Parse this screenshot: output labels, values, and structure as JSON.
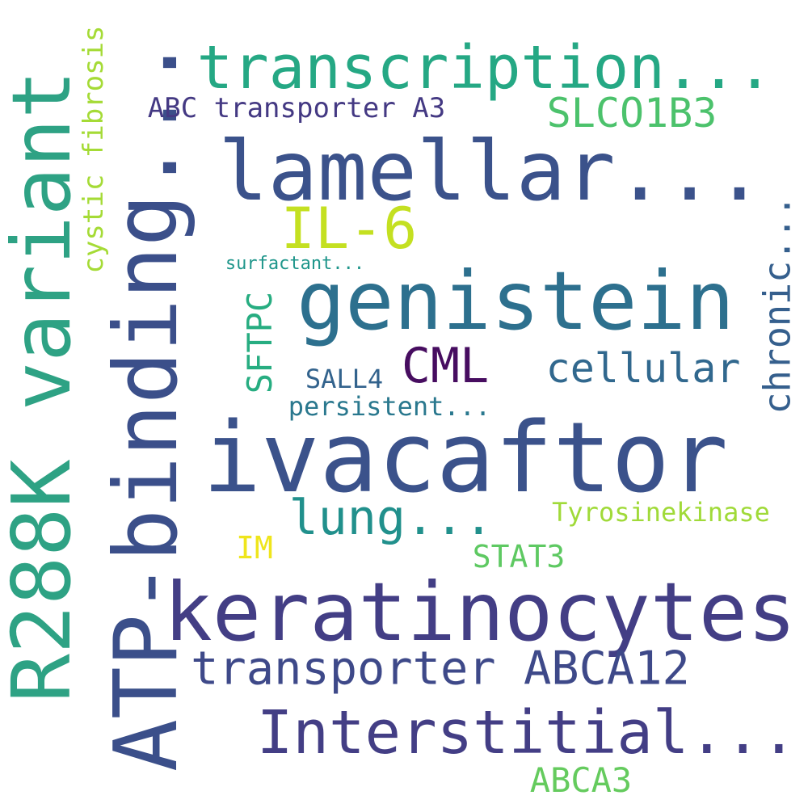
{
  "words": [
    {
      "id": "w01",
      "text": "R288K variant",
      "color": "#2ea284"
    },
    {
      "id": "w02",
      "text": "ATP-binding...",
      "color": "#3b4f8a"
    },
    {
      "id": "w03",
      "text": "transcription...",
      "color": "#25a884"
    },
    {
      "id": "w04",
      "text": "lamellar...",
      "color": "#3b528b"
    },
    {
      "id": "w05",
      "text": "IL-6",
      "color": "#c4e021"
    },
    {
      "id": "w06",
      "text": "genistein",
      "color": "#2d708e"
    },
    {
      "id": "w07",
      "text": "ivacaftor",
      "color": "#3b528b"
    },
    {
      "id": "w08",
      "text": "keratinocytes",
      "color": "#433e85"
    },
    {
      "id": "w09",
      "text": "Interstitial...",
      "color": "#433e85"
    },
    {
      "id": "w10",
      "text": "transporter ABCA12",
      "color": "#3e4989"
    },
    {
      "id": "w11",
      "text": "SLCO1B3",
      "color": "#4cc26c"
    },
    {
      "id": "w12",
      "text": "ABC transporter A3",
      "color": "#443983"
    },
    {
      "id": "w13",
      "text": "cystic fibrosis",
      "color": "#a5db36"
    },
    {
      "id": "w14",
      "text": "chronic...",
      "color": "#355f8d"
    },
    {
      "id": "w15",
      "text": "cellular",
      "color": "#31688e"
    },
    {
      "id": "w16",
      "text": "CML",
      "color": "#470d60"
    },
    {
      "id": "w17",
      "text": "SFTPC",
      "color": "#27ad81"
    },
    {
      "id": "w18",
      "text": "SALL4",
      "color": "#33638d"
    },
    {
      "id": "w19",
      "text": "persistent...",
      "color": "#2a788e"
    },
    {
      "id": "w20",
      "text": "surfactant...",
      "color": "#1f968b"
    },
    {
      "id": "w21",
      "text": "lung...",
      "color": "#21908c"
    },
    {
      "id": "w22",
      "text": "Tyrosinekinase",
      "color": "#a0da39"
    },
    {
      "id": "w23",
      "text": "IM",
      "color": "#efe51c"
    },
    {
      "id": "w24",
      "text": "STAT3",
      "color": "#5ec962"
    },
    {
      "id": "w25",
      "text": "ABCA3",
      "color": "#65cb5e"
    }
  ]
}
